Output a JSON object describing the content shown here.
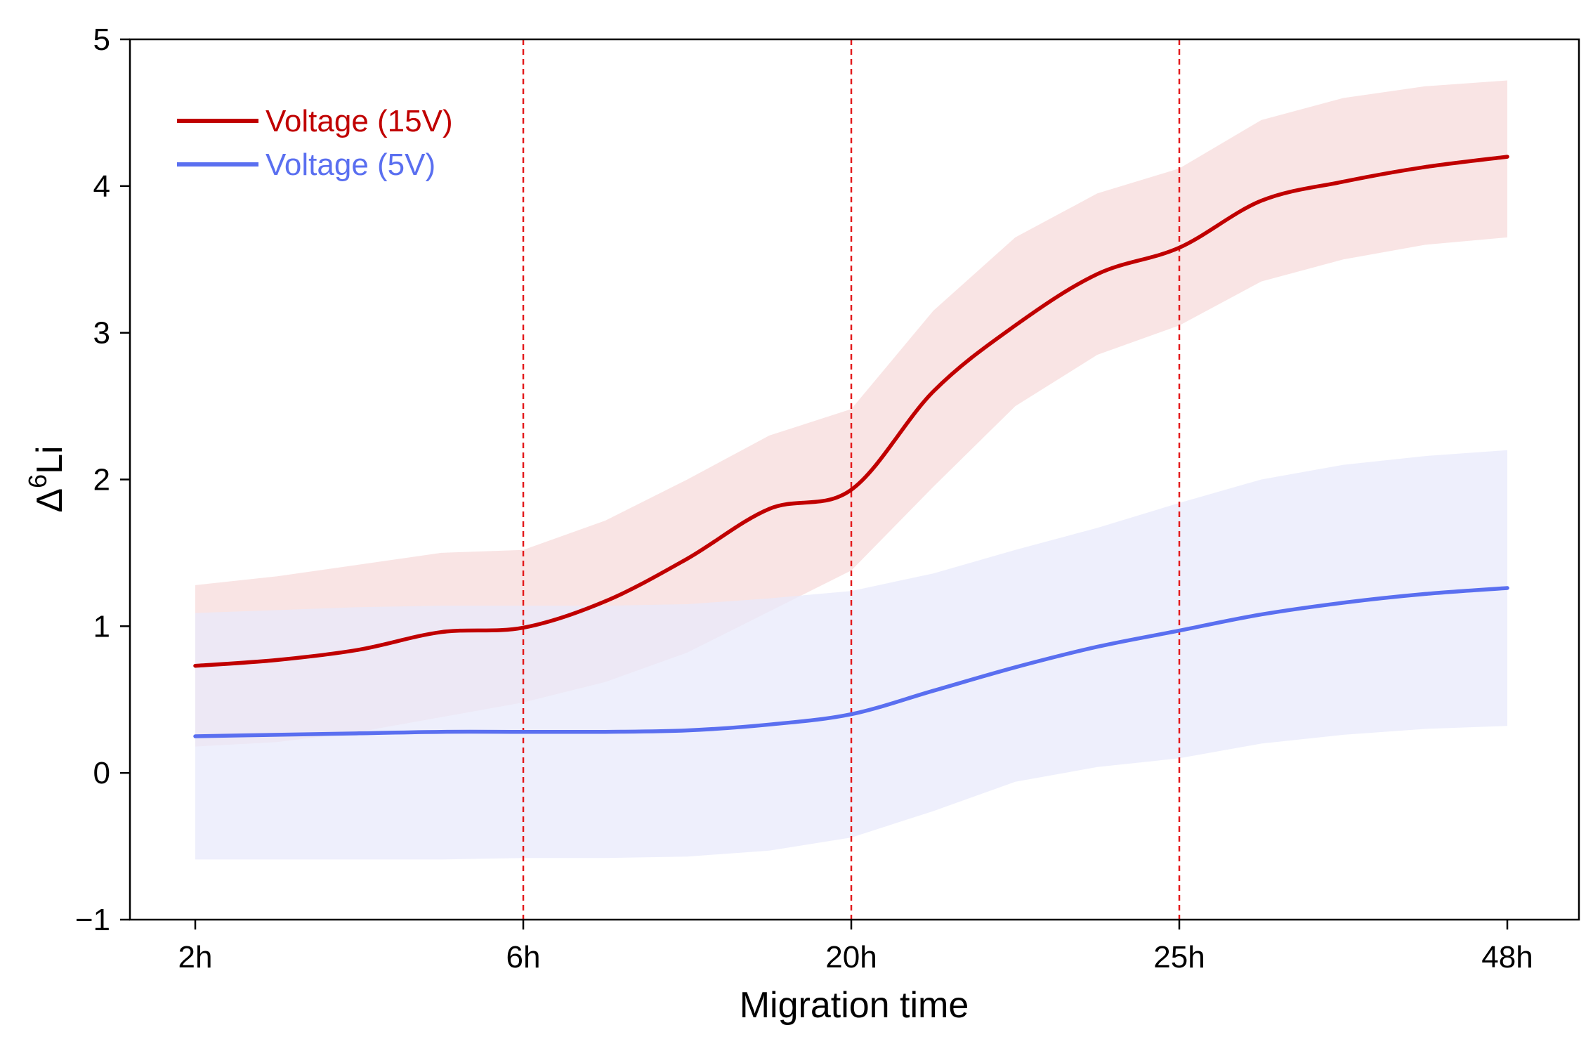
{
  "chart_data": {
    "type": "line",
    "title": "",
    "xlabel": "Migration time",
    "ylabel_delta": "Δ",
    "ylabel_sup": "6",
    "ylabel_rest": "Li",
    "categories": [
      "2h",
      "6h",
      "20h",
      "25h",
      "48h"
    ],
    "ylim": [
      -1,
      5
    ],
    "yticks": [
      -1,
      0,
      1,
      2,
      3,
      4,
      5
    ],
    "ytick_labels": [
      "−1",
      "0",
      "1",
      "2",
      "3",
      "4",
      "5"
    ],
    "reference_lines": {
      "positions": [
        "6h",
        "20h",
        "25h"
      ],
      "style": "dashed",
      "color": "#e31a1c"
    },
    "legend_position": "top-left",
    "series": [
      {
        "name": "Voltage (15V)",
        "color": "#c00000",
        "band_color": "#f8e1e1",
        "x": [
          0,
          0.25,
          0.5,
          0.75,
          1,
          1.25,
          1.5,
          1.75,
          2,
          2.25,
          2.5,
          2.75,
          3,
          3.25,
          3.5,
          3.75,
          4
        ],
        "values": [
          0.73,
          0.77,
          0.84,
          0.96,
          0.99,
          1.17,
          1.46,
          1.8,
          1.93,
          2.6,
          3.05,
          3.4,
          3.58,
          3.9,
          4.03,
          4.13,
          4.2
        ],
        "lower": [
          0.18,
          0.21,
          0.28,
          0.38,
          0.48,
          0.62,
          0.82,
          1.1,
          1.38,
          1.95,
          2.5,
          2.85,
          3.05,
          3.35,
          3.5,
          3.6,
          3.65
        ],
        "upper": [
          1.28,
          1.34,
          1.42,
          1.5,
          1.52,
          1.72,
          2.0,
          2.3,
          2.48,
          3.15,
          3.65,
          3.95,
          4.12,
          4.45,
          4.6,
          4.68,
          4.72
        ]
      },
      {
        "name": "Voltage (5V)",
        "color": "#5a6ff0",
        "band_color": "#e8eafb",
        "x": [
          0,
          0.25,
          0.5,
          0.75,
          1,
          1.25,
          1.5,
          1.75,
          2,
          2.25,
          2.5,
          2.75,
          3,
          3.25,
          3.5,
          3.75,
          4
        ],
        "values": [
          0.25,
          0.26,
          0.27,
          0.28,
          0.28,
          0.28,
          0.29,
          0.33,
          0.4,
          0.56,
          0.72,
          0.86,
          0.97,
          1.08,
          1.16,
          1.22,
          1.26
        ],
        "lower": [
          -0.59,
          -0.59,
          -0.59,
          -0.59,
          -0.58,
          -0.58,
          -0.57,
          -0.53,
          -0.44,
          -0.26,
          -0.06,
          0.04,
          0.1,
          0.2,
          0.26,
          0.3,
          0.32
        ],
        "upper": [
          1.09,
          1.11,
          1.13,
          1.14,
          1.14,
          1.14,
          1.15,
          1.19,
          1.24,
          1.36,
          1.52,
          1.67,
          1.84,
          2.0,
          2.1,
          2.16,
          2.2
        ]
      }
    ]
  }
}
